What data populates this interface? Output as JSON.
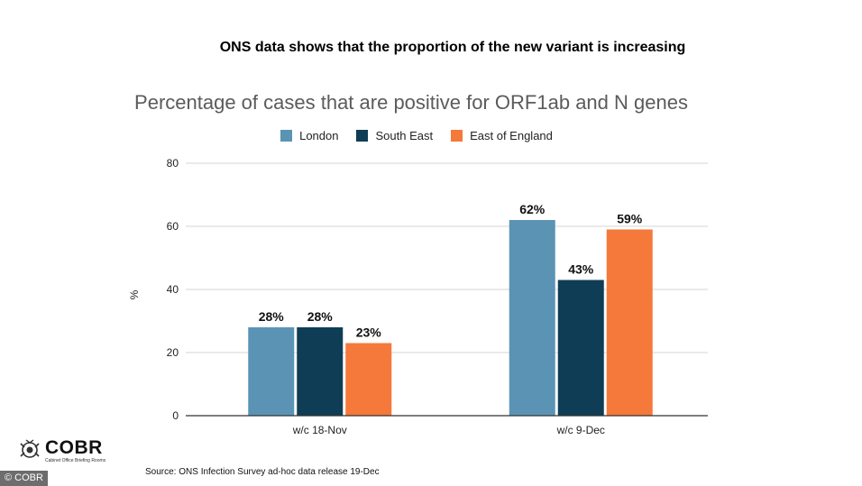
{
  "headline": "ONS data shows that the proportion of the new variant is increasing",
  "source": "Source: ONS Infection Survey ad-hoc data release 19-Dec",
  "logo": {
    "name": "COBR",
    "subtitle": "Cabinet Office Briefing Rooms"
  },
  "copyright": "© COBR",
  "chart_data": {
    "type": "bar",
    "title": "Percentage of cases that are positive for ORF1ab and N genes",
    "xlabel": "",
    "ylabel": "%",
    "ylim": [
      0,
      80
    ],
    "yticks": [
      0,
      20,
      40,
      60,
      80
    ],
    "grid": true,
    "legend_position": "top",
    "categories": [
      "w/c 18-Nov",
      "w/c 9-Dec"
    ],
    "series": [
      {
        "name": "London",
        "color": "#5b93b4",
        "values": [
          28,
          62
        ],
        "labels": [
          "28%",
          "62%"
        ]
      },
      {
        "name": "South East",
        "color": "#0f3d55",
        "values": [
          28,
          43
        ],
        "labels": [
          "28%",
          "43%"
        ]
      },
      {
        "name": "East of England",
        "color": "#f4793b",
        "values": [
          23,
          59
        ],
        "labels": [
          "23%",
          "59%"
        ]
      }
    ]
  }
}
